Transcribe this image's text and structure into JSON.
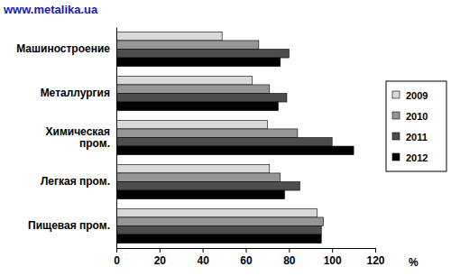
{
  "chart_data": {
    "type": "bar",
    "orientation": "horizontal",
    "source": "www.metalika.ua",
    "x_label": "%",
    "categories": [
      "Машиностроение",
      "Металлургия",
      "Химическая пром.",
      "Легкая пром.",
      "Пищевая пром."
    ],
    "series": [
      {
        "name": "2009",
        "color": "#d9d9d9",
        "values": [
          49,
          63,
          70,
          71,
          93
        ]
      },
      {
        "name": "2010",
        "color": "#969696",
        "values": [
          66,
          71,
          84,
          76,
          96
        ]
      },
      {
        "name": "2011",
        "color": "#4d4d4d",
        "values": [
          80,
          79,
          100,
          85,
          95
        ]
      },
      {
        "name": "2012",
        "color": "#000000",
        "values": [
          76,
          75,
          110,
          78,
          95
        ]
      }
    ],
    "xlim": [
      0,
      120
    ],
    "xticks": [
      0,
      20,
      40,
      60,
      80,
      100,
      120
    ],
    "grid": false,
    "legend": "right"
  }
}
